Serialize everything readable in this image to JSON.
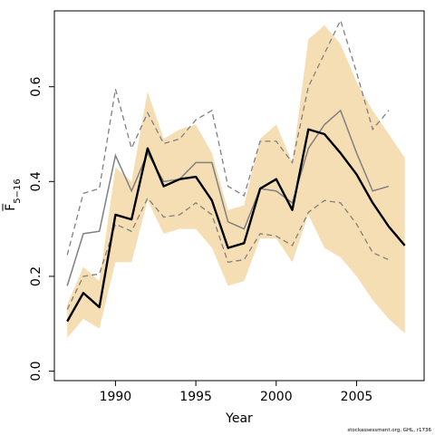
{
  "chart_data": {
    "type": "line",
    "xlabel": "Year",
    "ylabel": {
      "base": "F",
      "overline": true,
      "subscript": "5−16"
    },
    "credit": "stockassessment.org, GHL, r1736",
    "xlim": [
      1986.2,
      2009.2
    ],
    "ylim": [
      -0.02,
      0.76
    ],
    "xticks": [
      1990,
      1995,
      2000,
      2005
    ],
    "yticks": [
      0.0,
      0.2,
      0.4,
      0.6
    ],
    "ytick_labels": [
      "0.0",
      "0.2",
      "0.4",
      "0.6"
    ],
    "grid": false,
    "legend": "none",
    "colors": {
      "band": "#f5deb3",
      "main": "#000000",
      "previous": "#808080",
      "previous_ci": "#808080"
    },
    "band": {
      "x": [
        1987,
        1988,
        1989,
        1990,
        1991,
        1992,
        1993,
        1994,
        1995,
        1996,
        1997,
        1998,
        1999,
        2000,
        2001,
        2002,
        2003,
        2004,
        2005,
        2006,
        2007,
        2008
      ],
      "lower": [
        0.07,
        0.11,
        0.09,
        0.23,
        0.23,
        0.36,
        0.29,
        0.3,
        0.3,
        0.26,
        0.18,
        0.19,
        0.28,
        0.28,
        0.23,
        0.33,
        0.26,
        0.24,
        0.2,
        0.15,
        0.11,
        0.08
      ],
      "upper": [
        0.14,
        0.22,
        0.19,
        0.43,
        0.4,
        0.59,
        0.49,
        0.51,
        0.52,
        0.46,
        0.34,
        0.35,
        0.49,
        0.52,
        0.44,
        0.7,
        0.73,
        0.69,
        0.61,
        0.55,
        0.5,
        0.45
      ]
    },
    "main": {
      "x": [
        1987,
        1988,
        1989,
        1990,
        1991,
        1992,
        1993,
        1994,
        1995,
        1996,
        1997,
        1998,
        1999,
        2000,
        2001,
        2002,
        2003,
        2004,
        2005,
        2006,
        2007,
        2008
      ],
      "y": [
        0.105,
        0.165,
        0.135,
        0.33,
        0.32,
        0.47,
        0.39,
        0.405,
        0.41,
        0.36,
        0.26,
        0.27,
        0.385,
        0.405,
        0.34,
        0.51,
        0.5,
        0.46,
        0.415,
        0.355,
        0.305,
        0.265
      ]
    },
    "previous": {
      "x": [
        1987,
        1988,
        1989,
        1990,
        1991,
        1992,
        1993,
        1994,
        1995,
        1996,
        1997,
        1998,
        1999,
        2000,
        2001,
        2002,
        2003,
        2004,
        2005,
        2006,
        2007
      ],
      "y": [
        0.18,
        0.29,
        0.295,
        0.455,
        0.38,
        0.46,
        0.4,
        0.405,
        0.44,
        0.44,
        0.315,
        0.3,
        0.385,
        0.38,
        0.355,
        0.47,
        0.52,
        0.55,
        0.46,
        0.38,
        0.39
      ]
    },
    "previous_upper": {
      "x": [
        1987,
        1988,
        1989,
        1990,
        1991,
        1992,
        1993,
        1994,
        1995,
        1996,
        1997,
        1998,
        1999,
        2000,
        2001,
        2002,
        2003,
        2004,
        2005,
        2006,
        2007
      ],
      "y": [
        0.245,
        0.375,
        0.385,
        0.595,
        0.47,
        0.545,
        0.48,
        0.49,
        0.53,
        0.55,
        0.39,
        0.37,
        0.485,
        0.485,
        0.44,
        0.6,
        0.67,
        0.74,
        0.63,
        0.51,
        0.55
      ]
    },
    "previous_lower": {
      "x": [
        1987,
        1988,
        1989,
        1990,
        1991,
        1992,
        1993,
        1994,
        1995,
        1996,
        1997,
        1998,
        1999,
        2000,
        2001,
        2002,
        2003,
        2004,
        2005,
        2006,
        2007
      ],
      "y": [
        0.13,
        0.2,
        0.205,
        0.31,
        0.295,
        0.365,
        0.325,
        0.33,
        0.355,
        0.33,
        0.23,
        0.235,
        0.29,
        0.285,
        0.265,
        0.335,
        0.36,
        0.355,
        0.31,
        0.25,
        0.235
      ]
    }
  }
}
